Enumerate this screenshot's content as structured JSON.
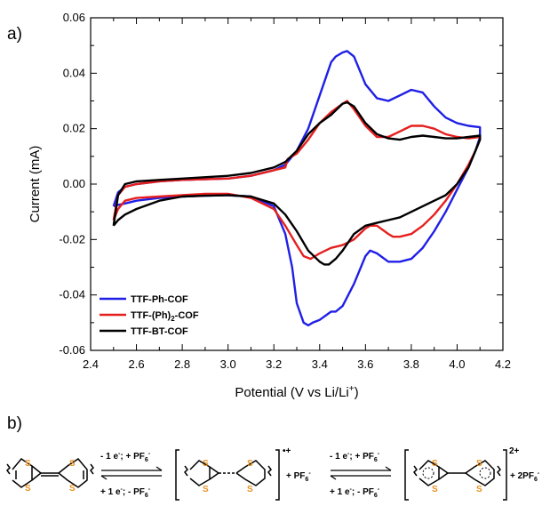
{
  "panel_a_label": "a)",
  "panel_b_label": "b)",
  "chart_data": {
    "type": "line",
    "xlabel": "Potential (V vs Li/Li",
    "xlabel_sup": "+",
    "xlabel_close": ")",
    "ylabel": "Current (mA)",
    "xlim": [
      2.4,
      4.2
    ],
    "ylim": [
      -0.06,
      0.06
    ],
    "x_ticks": [
      "2.4",
      "2.6",
      "2.8",
      "3.0",
      "3.2",
      "3.4",
      "3.6",
      "3.8",
      "4.0",
      "4.2"
    ],
    "y_ticks": [
      "-0.06",
      "-0.04",
      "-0.02",
      "0.00",
      "0.02",
      "0.04",
      "0.06"
    ],
    "x_tick_values": [
      2.4,
      2.6,
      2.8,
      3.0,
      3.2,
      3.4,
      3.6,
      3.8,
      4.0,
      4.2
    ],
    "y_tick_values": [
      -0.06,
      -0.04,
      -0.02,
      0.0,
      0.02,
      0.04,
      0.06
    ],
    "legend_placement": "bottom-left",
    "series": [
      {
        "name": "TTF-Ph-COF",
        "name_parts": [
          "TTF-Ph-COF"
        ],
        "color": "#1f1fe6",
        "x": [
          2.5,
          2.52,
          2.55,
          2.6,
          2.7,
          2.8,
          3.0,
          3.1,
          3.2,
          3.25,
          3.3,
          3.35,
          3.4,
          3.45,
          3.47,
          3.5,
          3.52,
          3.55,
          3.6,
          3.65,
          3.7,
          3.75,
          3.8,
          3.85,
          3.9,
          3.95,
          4.0,
          4.05,
          4.1,
          4.1,
          4.08,
          4.05,
          4.0,
          3.95,
          3.9,
          3.85,
          3.8,
          3.75,
          3.7,
          3.65,
          3.62,
          3.6,
          3.55,
          3.5,
          3.47,
          3.45,
          3.4,
          3.37,
          3.35,
          3.33,
          3.3,
          3.28,
          3.25,
          3.2,
          3.1,
          3.0,
          2.9,
          2.8,
          2.7,
          2.6,
          2.55,
          2.52,
          2.5
        ],
        "y": [
          -0.008,
          -0.003,
          -0.001,
          0.0,
          0.001,
          0.0015,
          0.002,
          0.003,
          0.005,
          0.007,
          0.012,
          0.02,
          0.032,
          0.044,
          0.046,
          0.0475,
          0.048,
          0.046,
          0.036,
          0.031,
          0.03,
          0.032,
          0.034,
          0.033,
          0.028,
          0.024,
          0.022,
          0.021,
          0.0205,
          0.017,
          0.012,
          0.006,
          -0.002,
          -0.01,
          -0.017,
          -0.023,
          -0.027,
          -0.028,
          -0.028,
          -0.025,
          -0.024,
          -0.026,
          -0.036,
          -0.044,
          -0.046,
          -0.046,
          -0.049,
          -0.05,
          -0.051,
          -0.05,
          -0.043,
          -0.03,
          -0.018,
          -0.008,
          -0.0045,
          -0.004,
          -0.0042,
          -0.0045,
          -0.005,
          -0.006,
          -0.007,
          -0.0075,
          -0.008
        ]
      },
      {
        "name": "TTF-(Ph)2-COF",
        "name_parts": [
          "TTF-(Ph)",
          "2",
          "-COF"
        ],
        "color": "#e61f1f",
        "x": [
          2.5,
          2.52,
          2.55,
          2.6,
          2.7,
          2.8,
          3.0,
          3.1,
          3.2,
          3.25,
          3.26,
          3.3,
          3.35,
          3.4,
          3.45,
          3.5,
          3.52,
          3.55,
          3.6,
          3.65,
          3.7,
          3.75,
          3.8,
          3.85,
          3.9,
          3.95,
          4.0,
          4.05,
          4.1,
          4.1,
          4.08,
          4.05,
          4.0,
          3.95,
          3.9,
          3.85,
          3.8,
          3.75,
          3.72,
          3.7,
          3.65,
          3.62,
          3.6,
          3.55,
          3.5,
          3.45,
          3.4,
          3.36,
          3.33,
          3.3,
          3.25,
          3.2,
          3.1,
          3.0,
          2.9,
          2.8,
          2.7,
          2.6,
          2.55,
          2.52,
          2.5
        ],
        "y": [
          -0.013,
          -0.004,
          -0.001,
          0.0,
          0.001,
          0.0015,
          0.002,
          0.003,
          0.005,
          0.006,
          0.009,
          0.011,
          0.016,
          0.022,
          0.026,
          0.029,
          0.03,
          0.027,
          0.021,
          0.017,
          0.017,
          0.019,
          0.021,
          0.021,
          0.02,
          0.018,
          0.017,
          0.0165,
          0.017,
          0.016,
          0.012,
          0.007,
          0.0,
          -0.006,
          -0.011,
          -0.015,
          -0.018,
          -0.019,
          -0.019,
          -0.018,
          -0.015,
          -0.015,
          -0.016,
          -0.02,
          -0.022,
          -0.023,
          -0.025,
          -0.027,
          -0.026,
          -0.022,
          -0.015,
          -0.009,
          -0.005,
          -0.0035,
          -0.0035,
          -0.004,
          -0.0045,
          -0.005,
          -0.006,
          -0.009,
          -0.013
        ]
      },
      {
        "name": "TTF-BT-COF",
        "name_parts": [
          "TTF-BT-COF"
        ],
        "color": "#000000",
        "x": [
          2.5,
          2.52,
          2.55,
          2.6,
          2.7,
          2.8,
          3.0,
          3.1,
          3.2,
          3.25,
          3.3,
          3.35,
          3.4,
          3.45,
          3.5,
          3.52,
          3.55,
          3.6,
          3.65,
          3.7,
          3.75,
          3.8,
          3.85,
          3.9,
          3.95,
          4.0,
          4.05,
          4.1,
          4.1,
          4.08,
          4.05,
          4.0,
          3.95,
          3.9,
          3.85,
          3.8,
          3.75,
          3.7,
          3.65,
          3.6,
          3.55,
          3.5,
          3.47,
          3.44,
          3.42,
          3.4,
          3.35,
          3.3,
          3.25,
          3.2,
          3.1,
          3.0,
          2.9,
          2.8,
          2.7,
          2.6,
          2.55,
          2.52,
          2.5
        ],
        "y": [
          -0.015,
          -0.004,
          0.0,
          0.001,
          0.0015,
          0.002,
          0.003,
          0.004,
          0.006,
          0.008,
          0.012,
          0.018,
          0.022,
          0.025,
          0.029,
          0.0295,
          0.028,
          0.022,
          0.018,
          0.0165,
          0.016,
          0.017,
          0.0175,
          0.017,
          0.0165,
          0.0165,
          0.017,
          0.0175,
          0.016,
          0.012,
          0.006,
          0.0,
          -0.004,
          -0.006,
          -0.008,
          -0.01,
          -0.012,
          -0.013,
          -0.014,
          -0.015,
          -0.018,
          -0.024,
          -0.027,
          -0.029,
          -0.029,
          -0.028,
          -0.024,
          -0.017,
          -0.011,
          -0.007,
          -0.0045,
          -0.004,
          -0.0042,
          -0.0045,
          -0.006,
          -0.009,
          -0.011,
          -0.013,
          -0.015
        ]
      }
    ]
  },
  "scheme": {
    "atom_label": "S",
    "step1_forward": [
      "- 1 e",
      "-",
      "; + PF",
      "6",
      "-"
    ],
    "step1_backward": [
      "+ 1 e",
      "-",
      "; - PF",
      "6",
      "-"
    ],
    "step2_forward": [
      "- 1 e",
      "-",
      "; + PF",
      "6",
      "-"
    ],
    "step2_backward": [
      "+ 1 e",
      "-",
      "; - PF",
      "6",
      "-"
    ],
    "charge1": "•+",
    "counterion1": [
      "+ PF",
      "6",
      "-"
    ],
    "charge2": "2+",
    "counterion2": [
      "+ 2PF",
      "6",
      "-"
    ]
  }
}
